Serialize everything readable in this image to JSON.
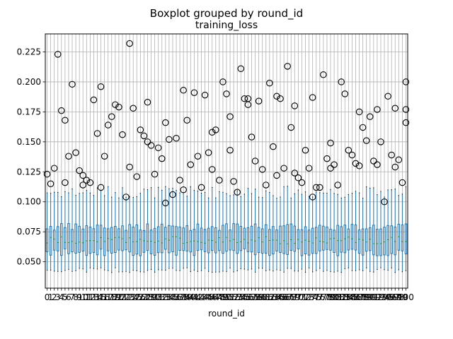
{
  "chart_data": {
    "type": "boxplot",
    "suptitle": "Boxplot grouped by round_id",
    "title": "training_loss",
    "xlabel": "round_id",
    "ylabel": "",
    "ylim": [
      0.028,
      0.24
    ],
    "yticks": [
      0.05,
      0.075,
      0.1,
      0.125,
      0.15,
      0.175,
      0.2,
      0.225
    ],
    "ytick_labels": [
      "0.050",
      "0.075",
      "0.100",
      "0.125",
      "0.150",
      "0.175",
      "0.200",
      "0.225"
    ],
    "grid": true,
    "legend": "none",
    "categories_count": 101,
    "categories_first": 0,
    "categories_last": 100,
    "visible_tick_labels": [
      "0",
      "1",
      "2",
      "3",
      "4",
      "5",
      "6",
      "7",
      "8",
      "9",
      "10",
      "100"
    ],
    "box_summary_typical": {
      "whisker_low": 0.043,
      "q1": 0.058,
      "median": 0.068,
      "q3": 0.079,
      "whisker_high": 0.108
    },
    "series": [
      {
        "name": "training_loss",
        "outliers_by_round_sample": [
          [
            0.123,
            0.115,
            0.128
          ],
          [
            0.223,
            0.176,
            0.116
          ],
          [
            0.168,
            0.138,
            0.198
          ],
          [
            0.141,
            0.126,
            0.114
          ],
          [
            0.122,
            0.118,
            0.116
          ],
          [
            0.185,
            0.157,
            0.112
          ],
          [
            0.196,
            0.138,
            0.164
          ],
          [
            0.171,
            0.181,
            0.179
          ],
          [
            0.156,
            0.104,
            0.129
          ],
          [
            0.232,
            0.178,
            0.121
          ],
          [
            0.16,
            0.155,
            0.15
          ],
          [
            0.183,
            0.147,
            0.123
          ],
          [
            0.145,
            0.136,
            0.099
          ],
          [
            0.166,
            0.152,
            0.106
          ],
          [
            0.153,
            0.118,
            0.11
          ],
          [
            0.193,
            0.168,
            0.131
          ],
          [
            0.191,
            0.138,
            0.112
          ],
          [
            0.189,
            0.141,
            0.127
          ],
          [
            0.158,
            0.16,
            0.118
          ],
          [
            0.2,
            0.19,
            0.171
          ],
          [
            0.143,
            0.117,
            0.108
          ],
          [
            0.211,
            0.186,
            0.181
          ],
          [
            0.186,
            0.154,
            0.134
          ],
          [
            0.184,
            0.127,
            0.114
          ],
          [
            0.199,
            0.146,
            0.122
          ],
          [
            0.188,
            0.186,
            0.128
          ],
          [
            0.213,
            0.162,
            0.124
          ],
          [
            0.18,
            0.12,
            0.116
          ],
          [
            0.143,
            0.128,
            0.104
          ],
          [
            0.187,
            0.112,
            0.112
          ],
          [
            0.206,
            0.136,
            0.128
          ],
          [
            0.149,
            0.131,
            0.114
          ],
          [
            0.2,
            0.19,
            0.143
          ],
          [
            0.139,
            0.132,
            0.13
          ],
          [
            0.175,
            0.162,
            0.151
          ],
          [
            0.171,
            0.134,
            0.131
          ],
          [
            0.177,
            0.15,
            0.1
          ],
          [
            0.188,
            0.139,
            0.129
          ],
          [
            0.178,
            0.135,
            0.116
          ],
          [
            0.2,
            0.166,
            0.177
          ]
        ]
      }
    ]
  }
}
